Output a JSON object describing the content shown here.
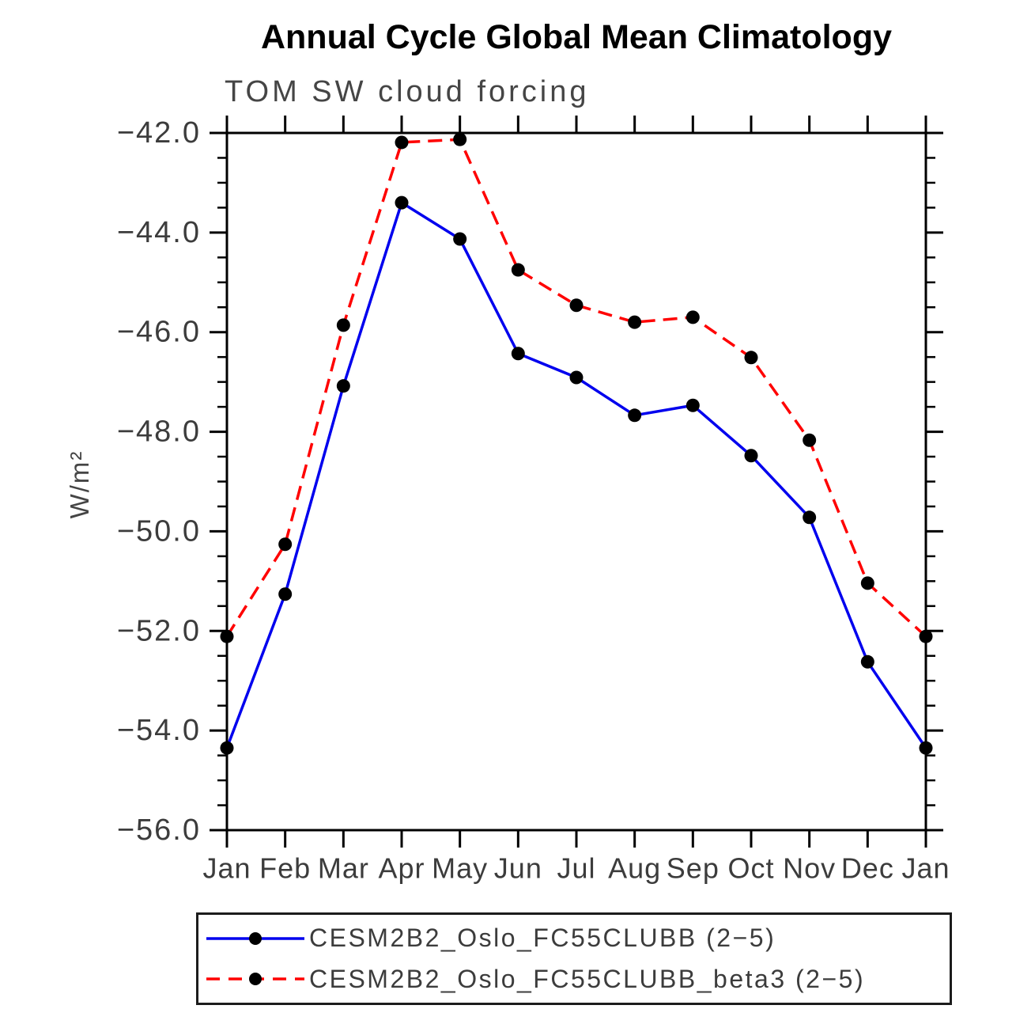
{
  "chart_data": {
    "type": "line",
    "title": "Annual Cycle Global Mean Climatology",
    "subtitle": "TOM SW cloud forcing",
    "ylabel": "W/m²",
    "xlabel": "",
    "categories": [
      "Jan",
      "Feb",
      "Mar",
      "Apr",
      "May",
      "Jun",
      "Jul",
      "Aug",
      "Sep",
      "Oct",
      "Nov",
      "Dec",
      "Jan"
    ],
    "ylim": [
      -56.0,
      -42.0
    ],
    "y_major_tick_step": 2.0,
    "y_minor_tick_step": 0.5,
    "y_tick_labels": [
      "−42.0",
      "−44.0",
      "−46.0",
      "−48.0",
      "−50.0",
      "−52.0",
      "−54.0",
      "−56.0"
    ],
    "grid": "off",
    "legend_position": "bottom-box",
    "marker": {
      "shape": "circle",
      "color": "#000000",
      "radius": 8.5
    },
    "series": [
      {
        "name": "CESM2B2_Oslo_FC55CLUBB (2−5)",
        "color": "#0000EE",
        "line_style": "solid",
        "values": [
          -54.35,
          -51.26,
          -47.08,
          -43.4,
          -44.13,
          -46.43,
          -46.91,
          -47.67,
          -47.47,
          -48.48,
          -49.72,
          -52.62,
          -54.35
        ]
      },
      {
        "name": "CESM2B2_Oslo_FC55CLUBB_beta3 (2−5)",
        "color": "#FF0000",
        "line_style": "dashed",
        "values": [
          -52.11,
          -50.26,
          -45.86,
          -42.19,
          -42.13,
          -44.75,
          -45.46,
          -45.8,
          -45.7,
          -46.51,
          -48.17,
          -51.04,
          -52.11
        ]
      }
    ]
  }
}
